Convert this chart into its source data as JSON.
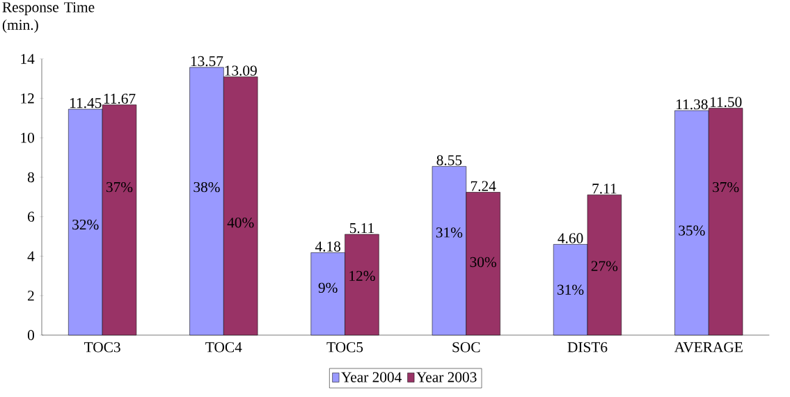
{
  "chart_data": {
    "type": "bar",
    "ylabel": "Response Time (min.)",
    "categories": [
      "TOC3",
      "TOC4",
      "TOC5",
      "SOC",
      "DIST6",
      "AVERAGE"
    ],
    "series": [
      {
        "name": "Year 2004",
        "color": "#9999ff",
        "values": [
          11.45,
          13.57,
          4.18,
          8.55,
          4.6,
          11.38
        ],
        "value_labels": [
          "11.45",
          "13.57",
          "4.18",
          "8.55",
          "4.60",
          "11.38"
        ]
      },
      {
        "name": "Year 2003",
        "color": "#993366",
        "values": [
          11.67,
          13.09,
          5.11,
          7.24,
          7.11,
          11.5
        ],
        "value_labels": [
          "11.67",
          "13.09",
          "5.11",
          "7.24",
          "7.11",
          "11.50"
        ]
      }
    ],
    "annotations": [
      {
        "text": "32%",
        "x": "TOC3",
        "y": 5.6
      },
      {
        "text": "37%",
        "x": "TOC3",
        "y": 7.5
      },
      {
        "text": "38%",
        "x": "TOC4",
        "y": 7.5
      },
      {
        "text": "40%",
        "x": "TOC4",
        "y": 5.7
      },
      {
        "text": "9%",
        "x": "TOC5",
        "y": 2.4
      },
      {
        "text": "12%",
        "x": "TOC5",
        "y": 3.0
      },
      {
        "text": "31%",
        "x": "SOC",
        "y": 5.2
      },
      {
        "text": "30%",
        "x": "SOC",
        "y": 3.7
      },
      {
        "text": "31%",
        "x": "DIST6",
        "y": 2.3
      },
      {
        "text": "27%",
        "x": "DIST6",
        "y": 3.5
      },
      {
        "text": "35%",
        "x": "AVERAGE",
        "y": 5.3
      },
      {
        "text": "37%",
        "x": "AVERAGE",
        "y": 7.5
      }
    ],
    "ylim": [
      0,
      14
    ],
    "yticks": [
      0,
      2,
      4,
      6,
      8,
      10,
      12,
      14
    ],
    "legend": "bottom"
  }
}
